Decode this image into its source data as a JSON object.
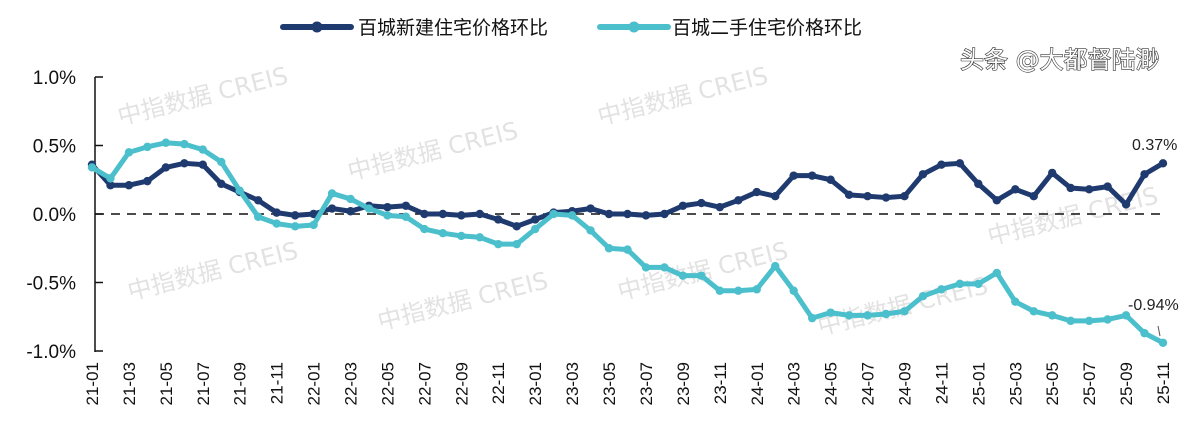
{
  "chart_data": {
    "type": "line",
    "title": "",
    "xlabel": "",
    "ylabel": "",
    "ylim": [
      -1.0,
      1.0
    ],
    "yticks": [
      "1.0%",
      "0.5%",
      "0.0%",
      "-0.5%",
      "-1.0%"
    ],
    "ytick_values": [
      1.0,
      0.5,
      0.0,
      -0.5,
      -1.0
    ],
    "y_unit": "%",
    "zero_reference_line": "dashed",
    "grid": false,
    "legend_position": "top",
    "x": [
      "21-01",
      "21-02",
      "21-03",
      "21-04",
      "21-05",
      "21-06",
      "21-07",
      "21-08",
      "21-09",
      "21-10",
      "21-11",
      "21-12",
      "22-01",
      "22-02",
      "22-03",
      "22-04",
      "22-05",
      "22-06",
      "22-07",
      "22-08",
      "22-09",
      "22-10",
      "22-11",
      "22-12",
      "23-01",
      "23-02",
      "23-03",
      "23-04",
      "23-05",
      "23-06",
      "23-07",
      "23-08",
      "23-09",
      "23-10",
      "23-11",
      "23-12",
      "24-01",
      "24-02",
      "24-03",
      "24-04",
      "24-05",
      "24-06",
      "24-07",
      "24-08",
      "24-09",
      "24-10",
      "24-11",
      "24-12",
      "25-01",
      "25-02",
      "25-03",
      "25-04",
      "25-05",
      "25-06",
      "25-07",
      "25-08",
      "25-09",
      "25-10",
      "25-11"
    ],
    "xtick_labels": [
      "21-01",
      "21-03",
      "21-05",
      "21-07",
      "21-09",
      "21-11",
      "22-01",
      "22-03",
      "22-05",
      "22-07",
      "22-09",
      "22-11",
      "23-01",
      "23-03",
      "23-05",
      "23-07",
      "23-09",
      "23-11",
      "24-01",
      "24-03",
      "24-05",
      "24-07",
      "24-09",
      "24-11",
      "25-01",
      "25-03",
      "25-05",
      "25-07",
      "25-09",
      "25-11"
    ],
    "series": [
      {
        "name": "百城新建住宅价格环比",
        "color": "#1f3a6e",
        "values": [
          0.36,
          0.21,
          0.21,
          0.24,
          0.34,
          0.37,
          0.36,
          0.22,
          0.16,
          0.1,
          0.01,
          -0.01,
          0.0,
          0.04,
          0.02,
          0.06,
          0.05,
          0.06,
          0.0,
          0.0,
          -0.01,
          0.0,
          -0.04,
          -0.09,
          -0.04,
          0.01,
          0.02,
          0.04,
          0.0,
          0.0,
          -0.01,
          0.0,
          0.06,
          0.08,
          0.05,
          0.1,
          0.16,
          0.13,
          0.28,
          0.28,
          0.25,
          0.14,
          0.13,
          0.12,
          0.13,
          0.29,
          0.36,
          0.37,
          0.22,
          0.1,
          0.18,
          0.13,
          0.3,
          0.19,
          0.18,
          0.2,
          0.07,
          0.29,
          0.37
        ],
        "end_label": "0.37%"
      },
      {
        "name": "百城二手住宅价格环比",
        "color": "#4bbfcc",
        "values": [
          0.34,
          0.26,
          0.45,
          0.49,
          0.52,
          0.51,
          0.47,
          0.38,
          0.17,
          -0.02,
          -0.07,
          -0.09,
          -0.08,
          0.15,
          0.11,
          0.04,
          -0.01,
          -0.02,
          -0.11,
          -0.14,
          -0.16,
          -0.17,
          -0.22,
          -0.22,
          -0.11,
          0.0,
          -0.01,
          -0.12,
          -0.25,
          -0.26,
          -0.39,
          -0.39,
          -0.45,
          -0.45,
          -0.56,
          -0.56,
          -0.55,
          -0.38,
          -0.56,
          -0.76,
          -0.72,
          -0.74,
          -0.74,
          -0.73,
          -0.71,
          -0.6,
          -0.55,
          -0.51,
          -0.51,
          -0.43,
          -0.64,
          -0.71,
          -0.74,
          -0.78,
          -0.78,
          -0.77,
          -0.74,
          -0.87,
          -0.94
        ],
        "end_label": "-0.94%"
      }
    ]
  },
  "watermark": {
    "text": "中指数据  CREIS",
    "credit": "头条 @大都督陆渺"
  }
}
